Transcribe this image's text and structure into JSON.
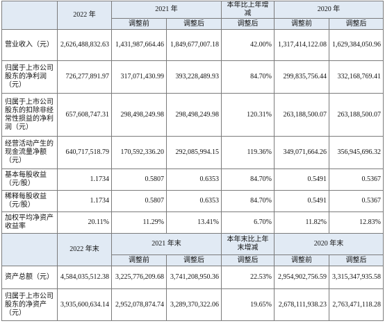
{
  "sec1": {
    "h": {
      "y2022": "2022 年",
      "y2021": "2021 年",
      "change": "本年比上年增减",
      "y2020": "2020 年",
      "before": "调整前",
      "after": "调整后"
    },
    "rows": [
      {
        "label": "营业收入（元）",
        "v": [
          "2,626,488,832.63",
          "1,431,987,664.46",
          "1,849,677,007.18",
          "42.00%",
          "1,317,414,122.08",
          "1,629,384,050.96"
        ]
      },
      {
        "label": "归属于上市公司股东的净利润（元）",
        "v": [
          "726,277,891.97",
          "317,071,430.99",
          "393,228,489.93",
          "84.70%",
          "299,835,756.44",
          "332,168,769.41"
        ]
      },
      {
        "label": "归属于上市公司股东的扣除非经常性损益的净利润（元）",
        "v": [
          "657,608,747.31",
          "298,498,249.98",
          "298,498,249.98",
          "120.31%",
          "263,188,500.07",
          "263,188,500.07"
        ]
      },
      {
        "label": "经营活动产生的现金流量净额（元）",
        "v": [
          "640,717,518.79",
          "170,592,336.20",
          "292,085,994.15",
          "119.36%",
          "349,071,664.26",
          "356,945,696.32"
        ]
      },
      {
        "label": "基本每股收益（元/股）",
        "v": [
          "1.1734",
          "0.5807",
          "0.6353",
          "84.70%",
          "0.5491",
          "0.5367"
        ]
      },
      {
        "label": "稀释每股收益（元/股）",
        "v": [
          "1.1734",
          "0.5807",
          "0.6353",
          "84.70%",
          "0.5491",
          "0.5367"
        ]
      },
      {
        "label": "加权平均净资产收益率",
        "v": [
          "20.11%",
          "11.29%",
          "13.41%",
          "6.70%",
          "11.82%",
          "12.83%"
        ]
      }
    ]
  },
  "sec2": {
    "h": {
      "y2022": "2022 年末",
      "y2021": "2021 年末",
      "change": "本年末比上年末增减",
      "y2020": "2020 年末",
      "before": "调整前",
      "after": "调整后"
    },
    "rows": [
      {
        "label": "资产总额（元）",
        "v": [
          "4,584,035,512.38",
          "3,225,776,209.68",
          "3,741,208,950.36",
          "22.53%",
          "2,954,902,756.59",
          "3,315,347,935.58"
        ]
      },
      {
        "label": "归属于上市公司股东的净资产（元）",
        "v": [
          "3,935,600,634.14",
          "2,952,078,874.74",
          "3,289,370,322.06",
          "19.65%",
          "2,678,111,938.23",
          "2,763,471,118.28"
        ]
      }
    ]
  }
}
